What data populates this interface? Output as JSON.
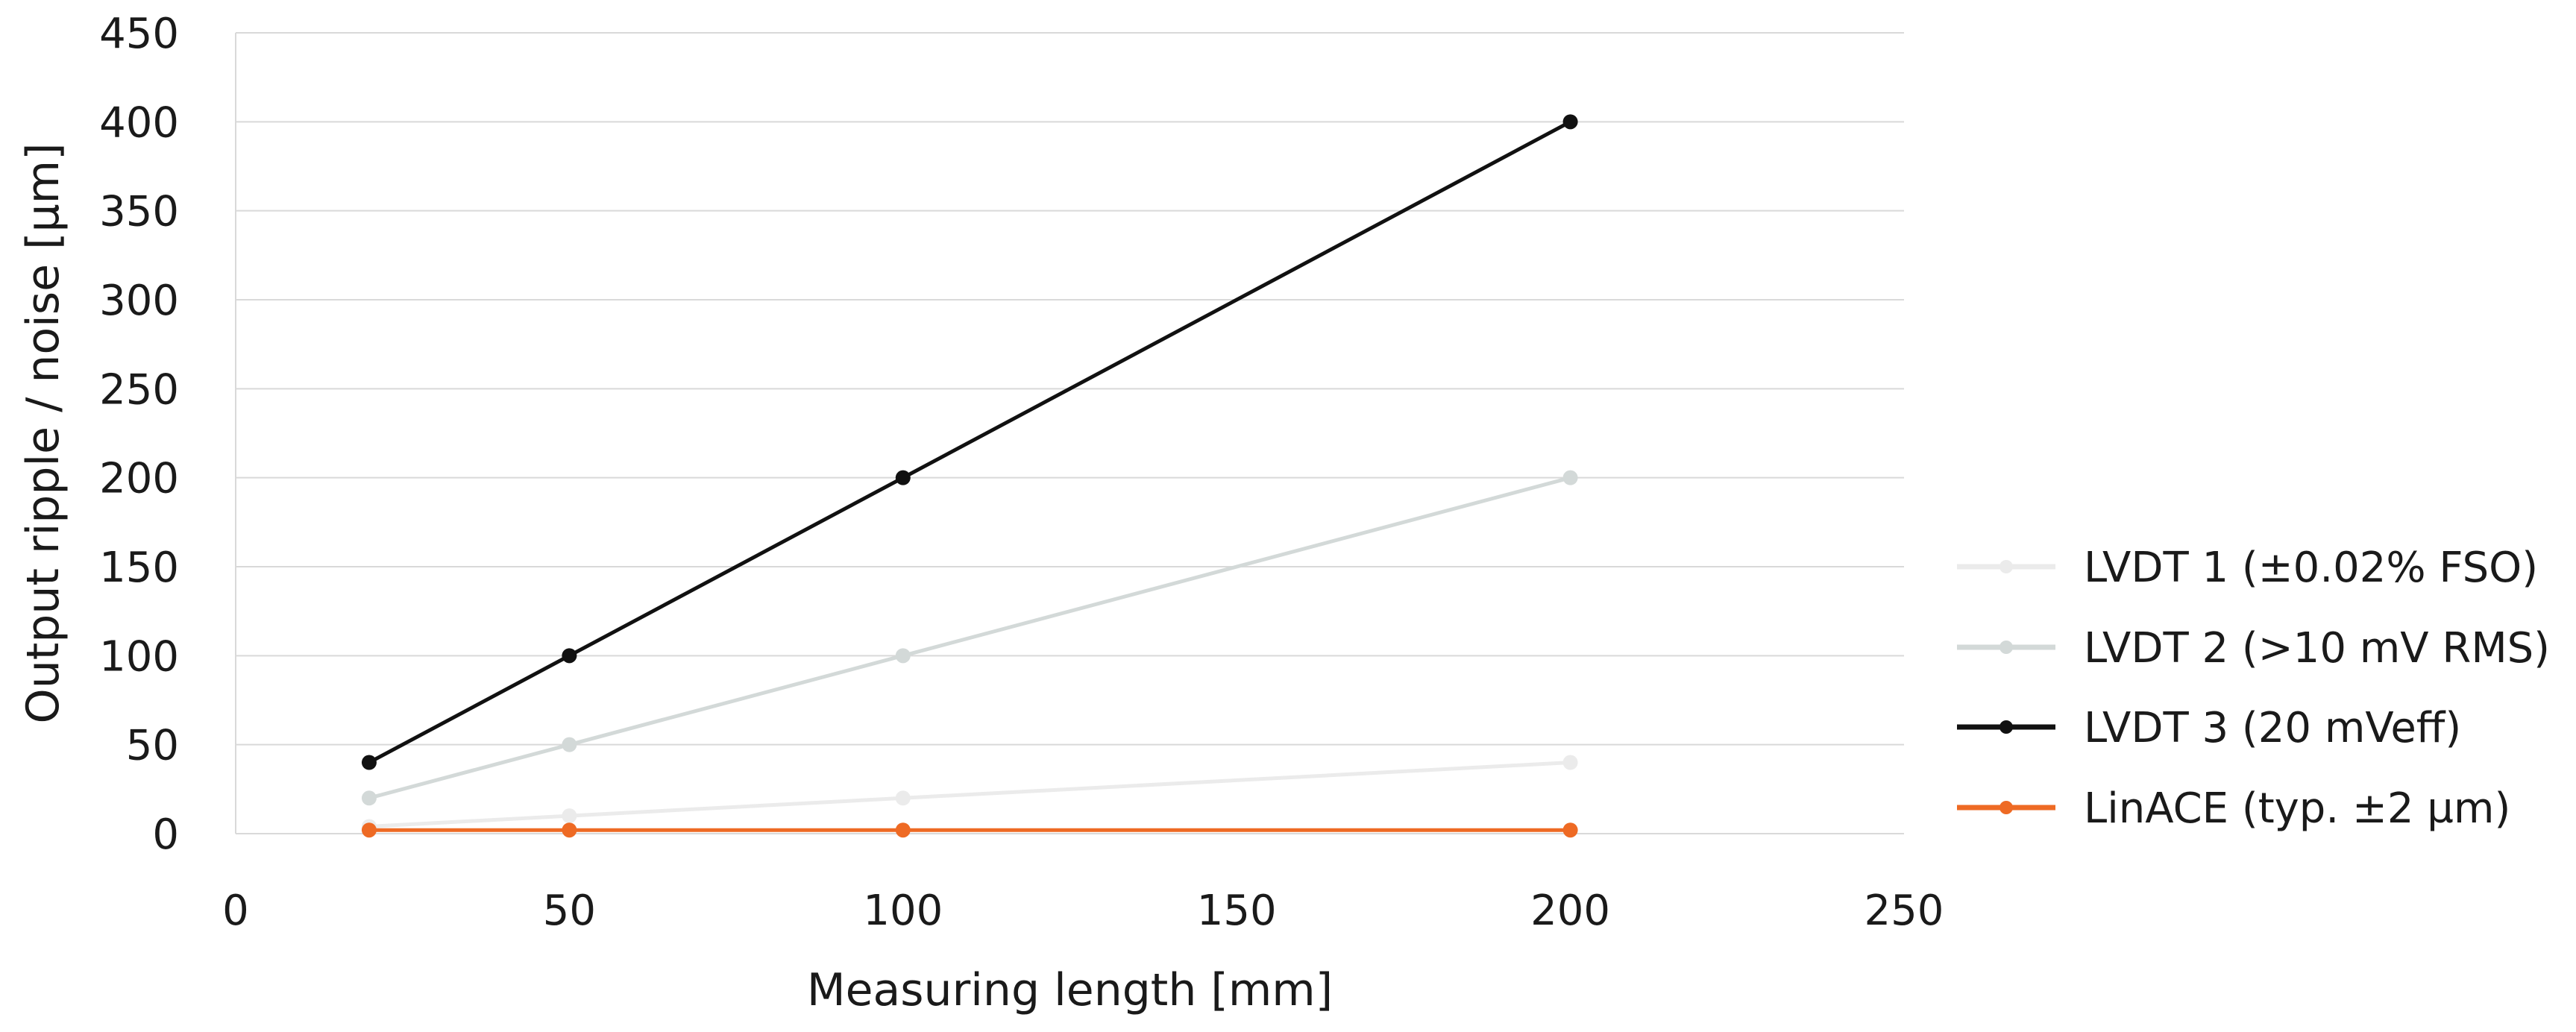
{
  "chart_data": {
    "type": "line",
    "title": "",
    "xlabel": "Measuring length [mm]",
    "ylabel": "Output ripple / noise [µm]",
    "xlim": [
      0,
      250
    ],
    "ylim": [
      0,
      450
    ],
    "xticks": [
      0,
      50,
      100,
      150,
      200,
      250
    ],
    "yticks": [
      0,
      50,
      100,
      150,
      200,
      250,
      300,
      350,
      400,
      450
    ],
    "grid": "horizontal",
    "legend_position": "right",
    "series": [
      {
        "name": "LVDT 1 (±0.02% FSO)",
        "color": "#ebebeb",
        "x": [
          20,
          50,
          100,
          200
        ],
        "y": [
          4,
          10,
          20,
          40
        ]
      },
      {
        "name": "LVDT 2 (>10 mV RMS)",
        "color": "#d3d9d8",
        "x": [
          20,
          50,
          100,
          200
        ],
        "y": [
          20,
          50,
          100,
          200
        ]
      },
      {
        "name": "LVDT 3 (20 mVeff)",
        "color": "#111111",
        "x": [
          20,
          50,
          100,
          200
        ],
        "y": [
          40,
          100,
          200,
          400
        ]
      },
      {
        "name": "LinACE (typ. ±2 µm)",
        "color": "#ee6a24",
        "x": [
          20,
          50,
          100,
          200
        ],
        "y": [
          2,
          2,
          2,
          2
        ]
      }
    ]
  }
}
